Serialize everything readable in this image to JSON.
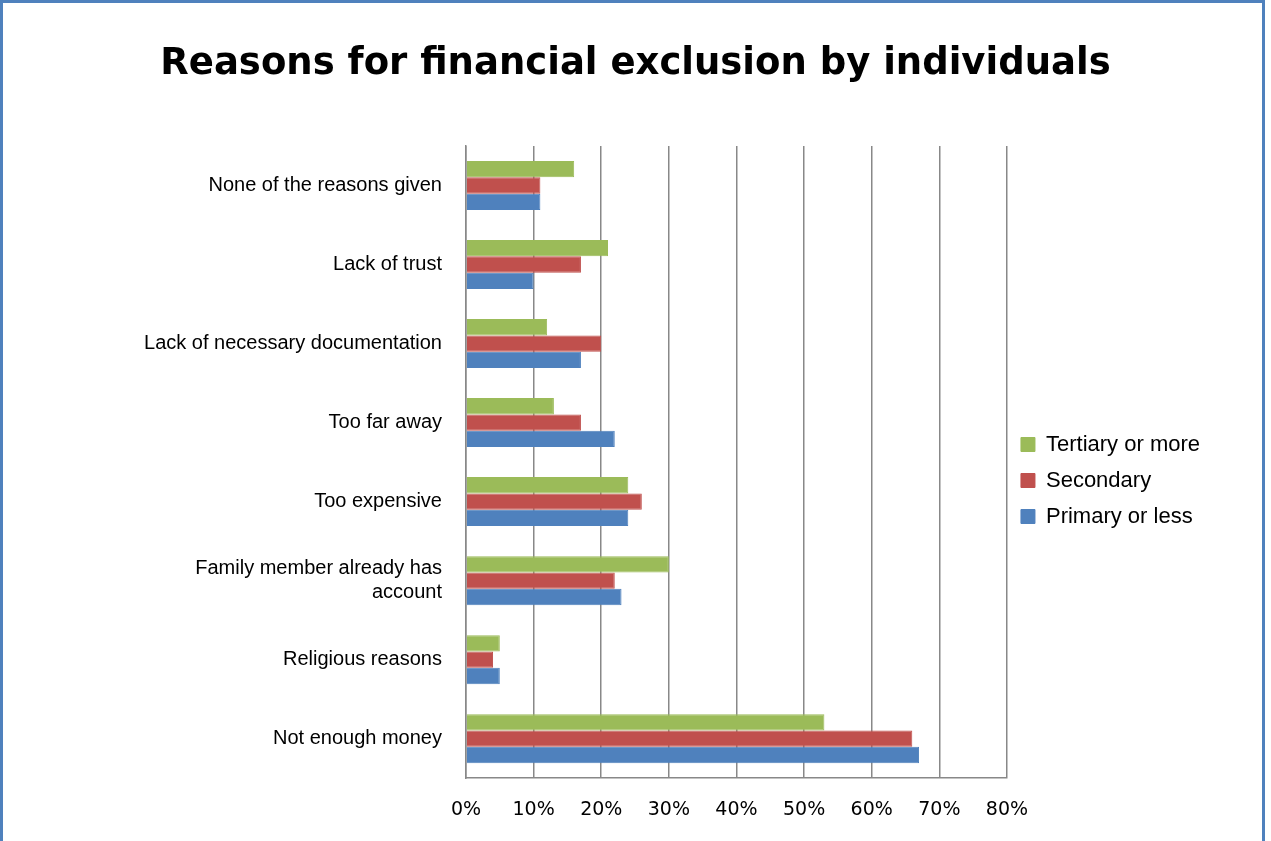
{
  "chart_data": {
    "type": "bar",
    "orientation": "horizontal",
    "title": "Reasons  for financial exclusion by individuals",
    "categories": [
      "None of the reasons given",
      "Lack of trust",
      "Lack of necessary documentation",
      "Too far away",
      "Too expensive",
      "Family member already has account",
      "Religious reasons",
      "Not enough money"
    ],
    "series": [
      {
        "name": "Tertiary or more",
        "color": "#9bbb59",
        "values": [
          16,
          21,
          12,
          13,
          24,
          30,
          5,
          53
        ]
      },
      {
        "name": "Secondary",
        "color": "#c0504d",
        "values": [
          11,
          17,
          20,
          17,
          26,
          22,
          4,
          66
        ]
      },
      {
        "name": "Primary or less",
        "color": "#4f81bd",
        "values": [
          11,
          10,
          17,
          22,
          24,
          23,
          5,
          67
        ]
      }
    ],
    "xlim": [
      0,
      80
    ],
    "xticks": [
      {
        "value": 0,
        "label": "0%"
      },
      {
        "value": 10,
        "label": "10%"
      },
      {
        "value": 20,
        "label": "20%"
      },
      {
        "value": 30,
        "label": "30%"
      },
      {
        "value": 40,
        "label": "40%"
      },
      {
        "value": 50,
        "label": "50%"
      },
      {
        "value": 60,
        "label": "60%"
      },
      {
        "value": 70,
        "label": "70%"
      },
      {
        "value": 80,
        "label": "80%"
      }
    ],
    "grid": "x",
    "legend": "right"
  }
}
